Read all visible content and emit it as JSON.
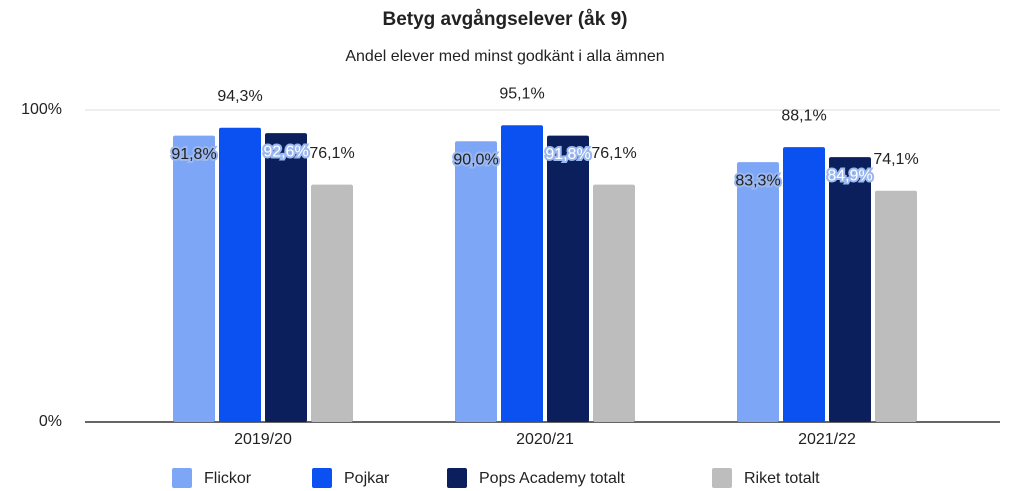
{
  "chart_data": {
    "type": "bar",
    "title": "Betyg avgångselever (åk 9)",
    "subtitle": "Andel elever med minst godkänt i alla ämnen",
    "categories": [
      "2019/20",
      "2020/21",
      "2021/22"
    ],
    "series": [
      {
        "name": "Flickor",
        "color": "#7ea6f7",
        "values": [
          91.8,
          90.0,
          83.3
        ],
        "value_labels": [
          "91,8%",
          "90,0%",
          "83,3%"
        ]
      },
      {
        "name": "Pojkar",
        "color": "#0b50f0",
        "values": [
          94.3,
          95.1,
          88.1
        ],
        "value_labels": [
          "94,3%",
          "95,1%",
          "88,1%"
        ]
      },
      {
        "name": "Pops Academy totalt",
        "color": "#0a1f5c",
        "values": [
          92.6,
          91.8,
          84.9
        ],
        "value_labels": [
          "92,6%",
          "91,8%",
          "84,9%"
        ]
      },
      {
        "name": "Riket totalt",
        "color": "#bdbdbd",
        "values": [
          76.1,
          76.1,
          74.1
        ],
        "value_labels": [
          "76,1%",
          "76,1%",
          "74,1%"
        ]
      }
    ],
    "ylim": [
      0,
      100
    ],
    "yticks": [
      {
        "value": 0,
        "label": "0%"
      },
      {
        "value": 100,
        "label": "100%"
      }
    ],
    "grid": true,
    "legend": "bottom"
  }
}
